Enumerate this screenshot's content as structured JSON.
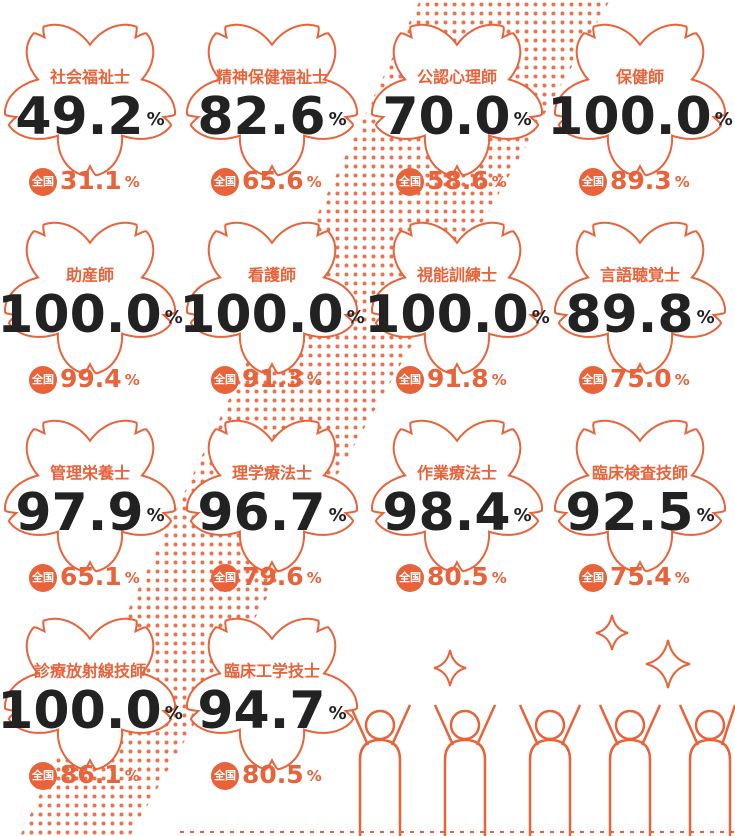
{
  "unit": "%",
  "national_label": "全国",
  "items": [
    {
      "name": "社会福祉士",
      "rate": "49.2",
      "national": "31.1"
    },
    {
      "name": "精神保健福祉士",
      "rate": "82.6",
      "national": "65.6"
    },
    {
      "name": "公認心理師",
      "rate": "70.0",
      "national": "58.6"
    },
    {
      "name": "保健師",
      "rate": "100.0",
      "national": "89.3"
    },
    {
      "name": "助産師",
      "rate": "100.0",
      "national": "99.4"
    },
    {
      "name": "看護師",
      "rate": "100.0",
      "national": "91.3"
    },
    {
      "name": "視能訓練士",
      "rate": "100.0",
      "national": "91.8"
    },
    {
      "name": "言語聴覚士",
      "rate": "89.8",
      "national": "75.0"
    },
    {
      "name": "管理栄養士",
      "rate": "97.9",
      "national": "65.1"
    },
    {
      "name": "理学療法士",
      "rate": "96.7",
      "national": "79.6"
    },
    {
      "name": "作業療法士",
      "rate": "98.4",
      "national": "80.5"
    },
    {
      "name": "臨床検査技師",
      "rate": "92.5",
      "national": "75.4"
    },
    {
      "name": "診療放射線技師",
      "rate": "100.0",
      "national": "86.1"
    },
    {
      "name": "臨床工学技士",
      "rate": "94.7",
      "national": "80.5"
    }
  ]
}
